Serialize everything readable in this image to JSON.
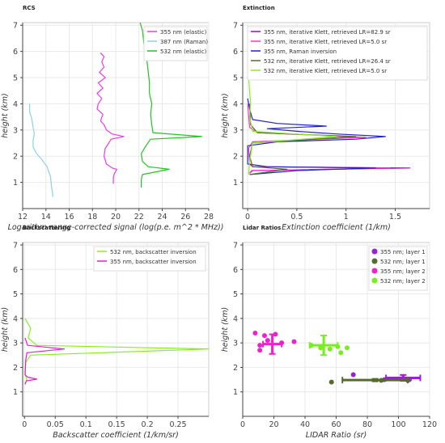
{
  "chart_data": [
    {
      "id": "rcs",
      "type": "line",
      "title": "RCS",
      "xlabel": "Logarithm range-corrected signal (log(p.e. m^2 * MHz))",
      "ylabel": "height (km)",
      "xlim": [
        12,
        28
      ],
      "ylim": [
        0,
        7.1
      ],
      "xticks": [
        12,
        14,
        16,
        18,
        20,
        22,
        24,
        26,
        28
      ],
      "yticks": [
        1,
        2,
        3,
        4,
        5,
        6,
        7
      ],
      "grid": true,
      "legend": "top-right",
      "series": [
        {
          "name": "355 nm (elastic)",
          "color": "#e83ee8",
          "points": [
            [
              19.8,
              0.95
            ],
            [
              19.8,
              1.2
            ],
            [
              19.9,
              1.35
            ],
            [
              20.1,
              1.5
            ],
            [
              19.7,
              1.55
            ],
            [
              19.2,
              1.7
            ],
            [
              19.0,
              2.0
            ],
            [
              19.1,
              2.3
            ],
            [
              19.4,
              2.5
            ],
            [
              19.6,
              2.65
            ],
            [
              20.7,
              2.75
            ],
            [
              19.7,
              2.85
            ],
            [
              19.2,
              3.0
            ],
            [
              19.0,
              3.2
            ],
            [
              18.7,
              3.35
            ],
            [
              18.9,
              3.6
            ],
            [
              18.4,
              3.8
            ],
            [
              18.5,
              4.0
            ],
            [
              18.8,
              4.2
            ],
            [
              18.4,
              4.4
            ],
            [
              18.9,
              4.6
            ],
            [
              18.5,
              4.8
            ],
            [
              19.1,
              5.0
            ],
            [
              18.6,
              5.2
            ],
            [
              19.0,
              5.4
            ],
            [
              18.8,
              5.6
            ],
            [
              19.0,
              5.8
            ],
            [
              18.7,
              5.95
            ]
          ]
        },
        {
          "name": "387 nm (Raman)",
          "color": "#8fd0e6",
          "points": [
            [
              14.6,
              0.45
            ],
            [
              14.5,
              0.8
            ],
            [
              14.4,
              1.2
            ],
            [
              14.1,
              1.6
            ],
            [
              13.6,
              1.9
            ],
            [
              13.2,
              2.1
            ],
            [
              12.9,
              2.35
            ],
            [
              12.9,
              2.6
            ],
            [
              13.0,
              2.85
            ],
            [
              12.9,
              3.1
            ],
            [
              12.8,
              3.4
            ],
            [
              12.6,
              3.7
            ],
            [
              12.6,
              4.0
            ]
          ]
        },
        {
          "name": "532 nm (elastic)",
          "color": "#22c422",
          "points": [
            [
              22.2,
              0.8
            ],
            [
              22.2,
              1.1
            ],
            [
              22.3,
              1.3
            ],
            [
              24.6,
              1.5
            ],
            [
              22.8,
              1.6
            ],
            [
              22.3,
              1.8
            ],
            [
              22.2,
              2.1
            ],
            [
              22.6,
              2.4
            ],
            [
              23.0,
              2.65
            ],
            [
              27.4,
              2.75
            ],
            [
              23.2,
              2.9
            ],
            [
              23.1,
              3.2
            ],
            [
              23.0,
              3.6
            ],
            [
              23.1,
              4.0
            ],
            [
              22.9,
              4.4
            ],
            [
              22.9,
              4.8
            ],
            [
              22.8,
              5.2
            ],
            [
              22.7,
              5.6
            ],
            [
              22.5,
              6.0
            ],
            [
              22.4,
              6.4
            ],
            [
              22.3,
              6.8
            ],
            [
              22.1,
              7.1
            ]
          ]
        }
      ]
    },
    {
      "id": "ext",
      "type": "line",
      "title": "Extinction",
      "xlabel": "Extinction coefficient (1/km)",
      "ylabel": "height (km)",
      "xlim": [
        -0.05,
        1.85
      ],
      "ylim": [
        0,
        7.1
      ],
      "xticks": [
        0,
        0.5,
        1,
        1.5
      ],
      "xticklabels": [
        "0",
        "0.5",
        "1",
        "1.5"
      ],
      "yticks": [
        1,
        2,
        3,
        4,
        5,
        6,
        7
      ],
      "grid": true,
      "legend": "top-right",
      "series": [
        {
          "name": "355 nm, iterative Klett, retrieved LR=82.9 sr",
          "color": "#aa00cc",
          "points": [
            [
              0.02,
              1.35
            ],
            [
              0.05,
              1.45
            ],
            [
              1.65,
              1.55
            ],
            [
              0.05,
              1.6
            ],
            [
              0.02,
              1.7
            ]
          ]
        },
        {
          "name": "355 nm, iterative Klett, retrieved LR=5.0 sr",
          "color": "#ff33cc",
          "points": [
            [
              0.02,
              1.35
            ],
            [
              0.04,
              1.45
            ],
            [
              1.45,
              1.55
            ],
            [
              0.05,
              1.6
            ],
            [
              0.02,
              1.7
            ],
            [
              0.01,
              2.3
            ],
            [
              0.05,
              2.55
            ],
            [
              1.2,
              2.72
            ],
            [
              0.1,
              2.9
            ],
            [
              0.02,
              3.1
            ],
            [
              0.0,
              4.0
            ]
          ]
        },
        {
          "name": "355 nm, Raman inversion",
          "color": "#2222cc",
          "points": [
            [
              0.02,
              1.3
            ],
            [
              0.5,
              1.45
            ],
            [
              1.3,
              1.55
            ],
            [
              0.2,
              1.6
            ],
            [
              0.0,
              1.7
            ],
            [
              0.0,
              2.0
            ],
            [
              0.0,
              2.4
            ],
            [
              0.3,
              2.55
            ],
            [
              1.1,
              2.65
            ],
            [
              1.4,
              2.75
            ],
            [
              0.9,
              2.85
            ],
            [
              0.5,
              2.95
            ],
            [
              0.2,
              3.05
            ],
            [
              0.8,
              3.15
            ],
            [
              0.3,
              3.25
            ],
            [
              0.05,
              3.4
            ],
            [
              0.02,
              3.8
            ],
            [
              0.0,
              4.2
            ]
          ]
        },
        {
          "name": "532 nm, iterative Klett, retrieved LR=26.4 sr",
          "color": "#556b2f",
          "points": [
            [
              0.02,
              1.3
            ],
            [
              0.4,
              1.5
            ],
            [
              0.05,
              1.6
            ],
            [
              0.02,
              2.0
            ],
            [
              0.05,
              2.5
            ],
            [
              1.1,
              2.75
            ],
            [
              0.1,
              2.9
            ],
            [
              0.03,
              3.2
            ],
            [
              0.02,
              4.0
            ]
          ]
        },
        {
          "name": "532 nm, iterative Klett, retrieved LR=5.0 sr",
          "color": "#88ee22",
          "points": [
            [
              0.01,
              1.3
            ],
            [
              0.02,
              1.8
            ],
            [
              0.05,
              2.5
            ],
            [
              0.9,
              2.75
            ],
            [
              0.05,
              2.95
            ],
            [
              0.02,
              3.5
            ],
            [
              0.03,
              4.0
            ],
            [
              0.01,
              5.0
            ],
            [
              0.02,
              6.0
            ],
            [
              0.01,
              6.6
            ]
          ]
        }
      ]
    },
    {
      "id": "bsc",
      "type": "line",
      "title": "Backscattering",
      "xlabel": "Backscatter coefficient (1/km/sr)",
      "ylabel": "height (km)",
      "xlim": [
        -0.003,
        0.3
      ],
      "ylim": [
        0,
        7.1
      ],
      "xticks": [
        0,
        0.05,
        0.1,
        0.15,
        0.2,
        0.25
      ],
      "xticklabels": [
        "0",
        "0.05",
        "0.1",
        "0.15",
        "0.2",
        "0.25"
      ],
      "yticks": [
        1,
        2,
        3,
        4,
        5,
        6,
        7
      ],
      "grid": true,
      "legend": "top-right",
      "series": [
        {
          "name": "532 nm, backscatter inversion",
          "color": "#88ee22",
          "points": [
            [
              0.001,
              1.35
            ],
            [
              0.004,
              1.5
            ],
            [
              0.001,
              1.7
            ],
            [
              0.002,
              2.2
            ],
            [
              0.01,
              2.5
            ],
            [
              0.3,
              2.75
            ],
            [
              0.02,
              2.9
            ],
            [
              0.006,
              3.2
            ],
            [
              0.01,
              3.6
            ],
            [
              0.003,
              3.9
            ],
            [
              0.001,
              4.0
            ]
          ]
        },
        {
          "name": "355 nm, backscatter inversion",
          "color": "#dd22cc",
          "points": [
            [
              0.001,
              1.3
            ],
            [
              0.003,
              1.45
            ],
            [
              0.02,
              1.52
            ],
            [
              0.005,
              1.6
            ],
            [
              0.001,
              1.7
            ],
            [
              0.002,
              2.3
            ],
            [
              0.004,
              2.6
            ],
            [
              0.065,
              2.75
            ],
            [
              0.005,
              2.9
            ],
            [
              0.001,
              3.2
            ]
          ]
        }
      ]
    },
    {
      "id": "lr",
      "type": "scatter",
      "title": "Lidar Ratios",
      "xlabel": "LIDAR Ratio (sr)",
      "ylabel": "height (km)",
      "xlim": [
        0,
        120
      ],
      "ylim": [
        0,
        7.1
      ],
      "xticks": [
        0,
        20,
        40,
        60,
        80,
        100,
        120
      ],
      "yticks": [
        1,
        2,
        3,
        4,
        5,
        6,
        7
      ],
      "grid": true,
      "legend": "top-right",
      "series": [
        {
          "name": "355 nm; layer 1",
          "color": "#9a1fd8",
          "points": [
            [
              71,
              1.7
            ],
            [
              91,
              1.5
            ],
            [
              103,
              1.55
            ],
            [
              107,
              1.5
            ]
          ],
          "mean": {
            "x": 103,
            "y": 1.57,
            "xerr": 11,
            "yerr": 0.12
          }
        },
        {
          "name": "532 nm; layer 1",
          "color": "#556b2f",
          "points": [
            [
              57,
              1.4
            ],
            [
              89,
              1.47
            ],
            [
              106,
              1.47
            ]
          ],
          "mean": {
            "x": 85,
            "y": 1.48,
            "xerr": 21,
            "yerr": 0.05
          }
        },
        {
          "name": "355 nm; layer 2",
          "color": "#ee22cc",
          "points": [
            [
              8,
              3.4
            ],
            [
              11,
              2.7
            ],
            [
              11,
              2.9
            ],
            [
              14,
              3.3
            ],
            [
              16,
              3.1
            ],
            [
              21,
              3.35
            ],
            [
              25,
              3.0
            ],
            [
              33,
              3.05
            ]
          ],
          "mean": {
            "x": 19,
            "y": 2.95,
            "xerr": 6,
            "yerr": 0.4
          }
        },
        {
          "name": "532 nm; layer 2",
          "color": "#77ee22",
          "points": [
            [
              44,
              2.9
            ],
            [
              50,
              2.8
            ],
            [
              56,
              2.75
            ],
            [
              61,
              2.85
            ],
            [
              63,
              2.6
            ],
            [
              67,
              2.8
            ]
          ],
          "mean": {
            "x": 52,
            "y": 2.9,
            "xerr": 9,
            "yerr": 0.4
          }
        }
      ]
    }
  ]
}
